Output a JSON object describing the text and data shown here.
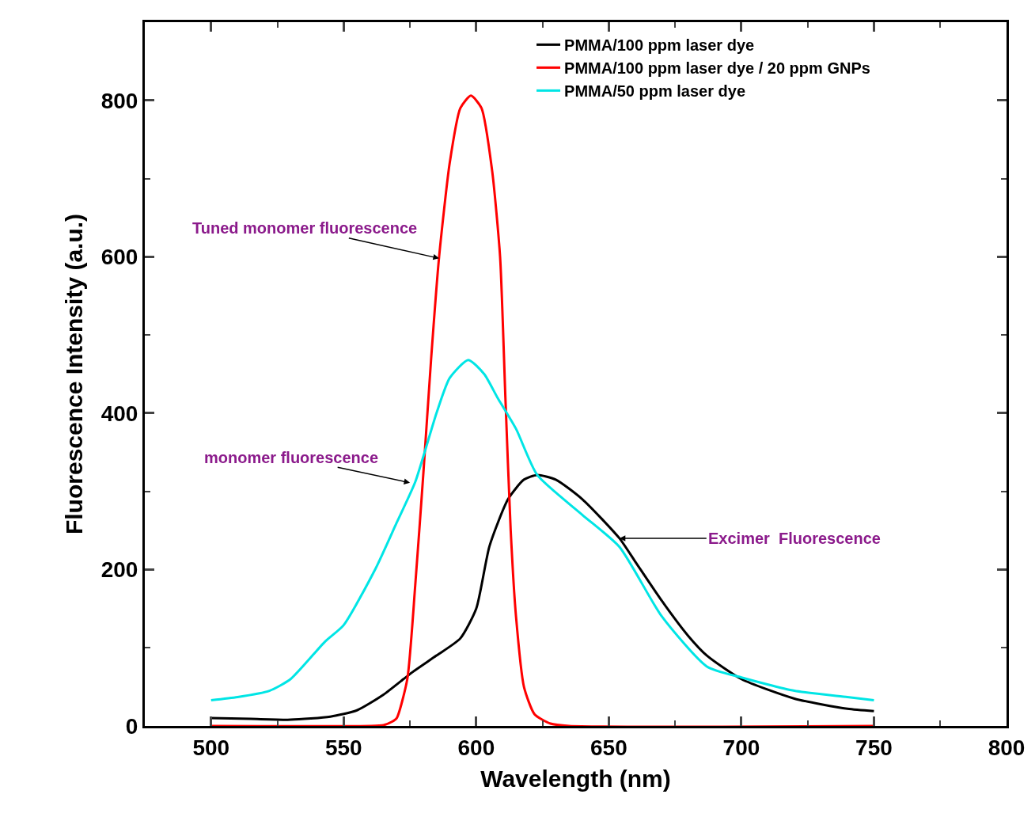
{
  "chart_data": {
    "type": "line",
    "xlabel": "Wavelength (nm)",
    "ylabel": "Fluorescence Intensity (a.u.)",
    "xlim": [
      475,
      800
    ],
    "ylim": [
      0,
      900
    ],
    "xticks": [
      {
        "value": 475,
        "label": null
      },
      500,
      {
        "value": 525,
        "label": null
      },
      550,
      {
        "value": 575,
        "label": null
      },
      600,
      {
        "value": 625,
        "label": null
      },
      650,
      {
        "value": 675,
        "label": null
      },
      700,
      {
        "value": 725,
        "label": null
      },
      750,
      {
        "value": 775,
        "label": null
      },
      800
    ],
    "yticks": [
      0,
      {
        "value": 100,
        "label": null
      },
      200,
      {
        "value": 300,
        "label": null
      },
      400,
      {
        "value": 500,
        "label": null
      },
      600,
      {
        "value": 700,
        "label": null
      },
      800
    ],
    "grid": false,
    "legend": "top right",
    "marker": "none",
    "line_style": "solid",
    "series": [
      {
        "name": "PMMA/100 ppm laser dye",
        "color": "#000000",
        "x": [
          500,
          515,
          530,
          545,
          555,
          565,
          576,
          585,
          594,
          600,
          605,
          612,
          618,
          623,
          630,
          640,
          654,
          660,
          670,
          680,
          687,
          700,
          720,
          740,
          750
        ],
        "values": [
          10,
          9,
          8,
          12,
          20,
          40,
          69,
          90,
          112,
          150,
          230,
          290,
          315,
          321,
          315,
          290,
          240,
          210,
          160,
          115,
          90,
          60,
          35,
          22,
          19
        ]
      },
      {
        "name": "PMMA/100 ppm laser dye / 20 ppm GNPs",
        "color": "#ff0000",
        "x": [
          500,
          560,
          565,
          568,
          570,
          574,
          577,
          580,
          583,
          586,
          590,
          594,
          598,
          602,
          606,
          609,
          611,
          613,
          615,
          618,
          622,
          628,
          635,
          750
        ],
        "values": [
          0,
          0,
          1,
          5,
          10,
          60,
          180,
          320,
          470,
          600,
          720,
          790,
          806,
          790,
          710,
          600,
          420,
          250,
          140,
          50,
          15,
          3,
          0,
          0
        ]
      },
      {
        "name": "PMMA/50 ppm laser dye",
        "color": "#00e5e5",
        "x": [
          500,
          510,
          522,
          530,
          543,
          550,
          562,
          570,
          577,
          585,
          590,
          597,
          603,
          608,
          615,
          623,
          640,
          654,
          670,
          687,
          700,
          720,
          740,
          750
        ],
        "values": [
          33,
          37,
          45,
          60,
          108,
          129,
          201,
          260,
          312,
          400,
          445,
          468,
          450,
          420,
          380,
          321,
          270,
          229,
          140,
          76,
          62,
          45,
          37,
          33
        ]
      }
    ],
    "annotations": [
      {
        "text": "Tuned monomer fluorescence",
        "x": 586,
        "y": 598
      },
      {
        "text": "monomer fluorescence",
        "x": 575,
        "y": 311
      },
      {
        "text": "Excimer  Fluorescence",
        "x": 654,
        "y": 240
      }
    ]
  }
}
